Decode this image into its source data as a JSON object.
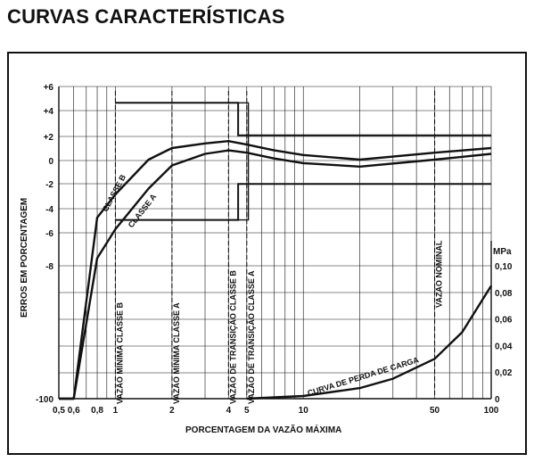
{
  "title": "CURVAS CARACTERÍSTICAS",
  "chart_data": {
    "type": "line",
    "xlabel": "PORCENTAGEM DA VAZÃO MÁXIMA",
    "ylabel": "ERROS EM PORCENTAGEM",
    "y2label": "MPa",
    "x_scale": "log",
    "xlim": [
      0.5,
      100
    ],
    "x_ticks": [
      0.5,
      0.6,
      0.8,
      1,
      2,
      4,
      5,
      10,
      50,
      100
    ],
    "x_tick_labels": [
      "0,5",
      "0,6",
      "0,8",
      "1",
      "2",
      "4",
      "5",
      "10",
      "50",
      "100"
    ],
    "y_tick_labels": [
      "+6",
      "+4",
      "+2",
      "0",
      "-2",
      "-4",
      "-6",
      "-8",
      "-100"
    ],
    "y2_ticks": [
      0,
      0.02,
      0.04,
      0.06,
      0.08,
      0.1
    ],
    "y2_tick_labels": [
      "0",
      "0,02",
      "0,04",
      "0,06",
      "0,08",
      "0,10"
    ],
    "vertical_labels": [
      {
        "text": "VAZÃO MÍNIMA CLASSE B",
        "x": 1
      },
      {
        "text": "VAZÃO MÍNIMA CLASSE A",
        "x": 2
      },
      {
        "text": "VAZÃO DE TRANSIÇÃO CLASSE B",
        "x": 4
      },
      {
        "text": "VAZÃO DE TRANSIÇÃO CLASSE A",
        "x": 5
      },
      {
        "text": "VAZÃO NOMINAL",
        "x": 50
      }
    ],
    "series": [
      {
        "name": "CLASSE B",
        "x": [
          0.5,
          0.6,
          0.8,
          1,
          1.5,
          2,
          3,
          4,
          5,
          7,
          10,
          20,
          50,
          100
        ],
        "y": [
          -100,
          -9.5,
          -5,
          -3,
          0,
          1,
          1.4,
          1.6,
          1.3,
          0.8,
          0.4,
          0,
          0.6,
          1.0
        ]
      },
      {
        "name": "CLASSE A",
        "x": [
          0.5,
          0.6,
          0.8,
          1,
          1.5,
          2,
          3,
          4,
          5,
          7,
          10,
          20,
          50,
          100
        ],
        "y": [
          -100,
          -11,
          -8.5,
          -6,
          -2.5,
          -0.5,
          0.5,
          0.8,
          0.6,
          0.1,
          -0.3,
          -0.6,
          0,
          0.5
        ]
      },
      {
        "name": "CURVA DE PERDA DE CARGA",
        "x": [
          5,
          10,
          20,
          30,
          50,
          70,
          100
        ],
        "y": [
          0,
          0.002,
          0.008,
          0.015,
          0.03,
          0.05,
          0.085
        ]
      }
    ],
    "grid": true
  }
}
